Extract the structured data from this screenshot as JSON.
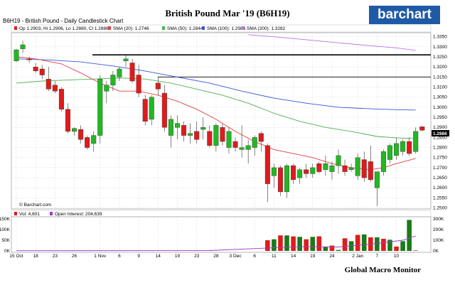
{
  "header": {
    "chart_label": "B6H19 - British Pound - Daily Candlestick Chart",
    "title": "British Pound Mar '19 (B6H19)",
    "brand": "barchart",
    "credit": "Global Macro Monitor",
    "watermark": "© Barchart.com"
  },
  "legend": {
    "ohlc": "Op 1.2903, Hi 1.2906, Lo 1.2880, Cl 1.2886",
    "sma20": "SMA (20): 1.2746",
    "sma50": "SMA (50): 1.2844",
    "sma100": "SMA (100): 1.2986",
    "sma200": "SMA (200): 1.3282",
    "vol": "Vol: 4,601",
    "oi": "Open Interest: 204,639",
    "last_price": "1.2886"
  },
  "colors": {
    "up": "#22b822",
    "down": "#e01b1b",
    "sma20": "#e04040",
    "sma50": "#4caf50",
    "sma100": "#3a55d8",
    "sma200": "#c070e0",
    "oi_line": "#9c3cc8",
    "brand_bg": "#1f5aa6",
    "vol_up": "#1b7a1b",
    "vol_down": "#e01b1b"
  },
  "chart_data": {
    "type": "candlestick",
    "y_ticks": [
      "1.3350",
      "1.3300",
      "1.3250",
      "1.3200",
      "1.3150",
      "1.3100",
      "1.3050",
      "1.3000",
      "1.2950",
      "1.2900",
      "1.2850",
      "1.2800",
      "1.2750",
      "1.2700",
      "1.2650",
      "1.2600",
      "1.2550",
      "1.2500"
    ],
    "ylim": [
      1.2495,
      1.337
    ],
    "x_ticks": [
      {
        "i": 0,
        "label": "15 Oct"
      },
      {
        "i": 3,
        "label": "18"
      },
      {
        "i": 6,
        "label": "23"
      },
      {
        "i": 9,
        "label": "26"
      },
      {
        "i": 13,
        "label": "1 Nov"
      },
      {
        "i": 16,
        "label": "6"
      },
      {
        "i": 19,
        "label": "9"
      },
      {
        "i": 22,
        "label": "14"
      },
      {
        "i": 25,
        "label": "19"
      },
      {
        "i": 28,
        "label": "23"
      },
      {
        "i": 31,
        "label": "28"
      },
      {
        "i": 34,
        "label": "3 Dec"
      },
      {
        "i": 37,
        "label": "6"
      },
      {
        "i": 40,
        "label": "11"
      },
      {
        "i": 43,
        "label": "14"
      },
      {
        "i": 46,
        "label": "19"
      },
      {
        "i": 49,
        "label": "24"
      },
      {
        "i": 53,
        "label": "2 Jan"
      },
      {
        "i": 56,
        "label": "7"
      },
      {
        "i": 59,
        "label": "10"
      }
    ],
    "h_lines": [
      1.326,
      1.315
    ],
    "candles": [
      [
        1.323,
        1.329,
        1.3225,
        1.3285
      ],
      [
        1.329,
        1.333,
        1.327,
        1.331
      ],
      [
        1.324,
        1.325,
        1.322,
        1.3235
      ],
      [
        1.32,
        1.322,
        1.317,
        1.318
      ],
      [
        1.319,
        1.321,
        1.314,
        1.316
      ],
      [
        1.314,
        1.32,
        1.308,
        1.309
      ],
      [
        1.311,
        1.313,
        1.307,
        1.308
      ],
      [
        1.309,
        1.31,
        1.298,
        1.299
      ],
      [
        1.299,
        1.302,
        1.287,
        1.288
      ],
      [
        1.288,
        1.29,
        1.286,
        1.2895
      ],
      [
        1.289,
        1.291,
        1.282,
        1.284
      ],
      [
        1.285,
        1.286,
        1.279,
        1.28
      ],
      [
        1.282,
        1.288,
        1.278,
        1.286
      ],
      [
        1.286,
        1.316,
        1.282,
        1.314
      ],
      [
        1.308,
        1.313,
        1.302,
        1.311
      ],
      [
        1.311,
        1.318,
        1.308,
        1.316
      ],
      [
        1.315,
        1.32,
        1.313,
        1.319
      ],
      [
        1.323,
        1.326,
        1.32,
        1.324
      ],
      [
        1.322,
        1.324,
        1.312,
        1.313
      ],
      [
        1.316,
        1.321,
        1.305,
        1.307
      ],
      [
        1.304,
        1.306,
        1.291,
        1.293
      ],
      [
        1.294,
        1.306,
        1.291,
        1.305
      ],
      [
        1.312,
        1.315,
        1.306,
        1.309
      ],
      [
        1.307,
        1.311,
        1.288,
        1.29
      ],
      [
        1.286,
        1.296,
        1.28,
        1.294
      ],
      [
        1.29,
        1.296,
        1.284,
        1.292
      ],
      [
        1.291,
        1.293,
        1.283,
        1.286
      ],
      [
        1.286,
        1.292,
        1.282,
        1.287
      ],
      [
        1.288,
        1.293,
        1.282,
        1.284
      ],
      [
        1.289,
        1.295,
        1.284,
        1.29
      ],
      [
        1.288,
        1.291,
        1.28,
        1.281
      ],
      [
        1.281,
        1.292,
        1.278,
        1.291
      ],
      [
        1.29,
        1.292,
        1.281,
        1.283
      ],
      [
        1.28,
        1.29,
        1.277,
        1.288
      ],
      [
        1.283,
        1.285,
        1.278,
        1.28
      ],
      [
        1.279,
        1.291,
        1.275,
        1.28
      ],
      [
        1.279,
        1.284,
        1.272,
        1.281
      ],
      [
        1.28,
        1.286,
        1.276,
        1.285
      ],
      [
        1.287,
        1.288,
        1.278,
        1.283
      ],
      [
        1.281,
        1.282,
        1.253,
        1.262
      ],
      [
        1.266,
        1.272,
        1.26,
        1.27
      ],
      [
        1.27,
        1.271,
        1.256,
        1.258
      ],
      [
        1.258,
        1.272,
        1.255,
        1.271
      ],
      [
        1.271,
        1.272,
        1.262,
        1.264
      ],
      [
        1.265,
        1.27,
        1.262,
        1.269
      ],
      [
        1.269,
        1.272,
        1.265,
        1.267
      ],
      [
        1.267,
        1.272,
        1.265,
        1.27
      ],
      [
        1.272,
        1.273,
        1.267,
        1.268
      ],
      [
        1.269,
        1.276,
        1.266,
        1.272
      ],
      [
        1.268,
        1.273,
        1.264,
        1.271
      ],
      [
        1.271,
        1.279,
        1.267,
        1.276
      ],
      [
        1.271,
        1.274,
        1.266,
        1.268
      ],
      [
        1.269,
        1.272,
        1.268,
        1.27
      ],
      [
        1.266,
        1.277,
        1.264,
        1.275
      ],
      [
        1.274,
        1.278,
        1.263,
        1.265
      ],
      [
        1.273,
        1.281,
        1.263,
        1.264
      ],
      [
        1.26,
        1.268,
        1.251,
        1.268
      ],
      [
        1.268,
        1.279,
        1.266,
        1.278
      ],
      [
        1.274,
        1.282,
        1.272,
        1.281
      ],
      [
        1.276,
        1.285,
        1.274,
        1.282
      ],
      [
        1.278,
        1.284,
        1.276,
        1.283
      ],
      [
        1.283,
        1.285,
        1.276,
        1.277
      ],
      [
        1.278,
        1.29,
        1.277,
        1.288
      ],
      [
        1.2903,
        1.2906,
        1.288,
        1.2886
      ]
    ],
    "sma20": [
      [
        0,
        1.325
      ],
      [
        3,
        1.324
      ],
      [
        7,
        1.3215
      ],
      [
        10,
        1.317
      ],
      [
        13,
        1.312
      ],
      [
        16,
        1.308
      ],
      [
        19,
        1.308
      ],
      [
        22,
        1.306
      ],
      [
        25,
        1.303
      ],
      [
        28,
        1.299
      ],
      [
        31,
        1.294
      ],
      [
        34,
        1.288
      ],
      [
        37,
        1.283
      ],
      [
        40,
        1.279
      ],
      [
        43,
        1.277
      ],
      [
        46,
        1.275
      ],
      [
        49,
        1.272
      ],
      [
        52,
        1.27
      ],
      [
        55,
        1.269
      ],
      [
        57,
        1.27
      ],
      [
        59,
        1.272
      ],
      [
        62,
        1.2746
      ]
    ],
    "sma50": [
      [
        0,
        1.312
      ],
      [
        4,
        1.313
      ],
      [
        8,
        1.3135
      ],
      [
        12,
        1.314
      ],
      [
        16,
        1.3145
      ],
      [
        20,
        1.314
      ],
      [
        24,
        1.312
      ],
      [
        28,
        1.309
      ],
      [
        32,
        1.306
      ],
      [
        36,
        1.302
      ],
      [
        40,
        1.297
      ],
      [
        44,
        1.293
      ],
      [
        48,
        1.29
      ],
      [
        52,
        1.288
      ],
      [
        56,
        1.2855
      ],
      [
        59,
        1.2848
      ],
      [
        62,
        1.2844
      ]
    ],
    "sma100": [
      [
        0,
        1.324
      ],
      [
        5,
        1.3235
      ],
      [
        10,
        1.3225
      ],
      [
        15,
        1.3205
      ],
      [
        20,
        1.318
      ],
      [
        25,
        1.315
      ],
      [
        30,
        1.312
      ],
      [
        35,
        1.308
      ],
      [
        40,
        1.3045
      ],
      [
        45,
        1.302
      ],
      [
        50,
        1.3
      ],
      [
        55,
        1.2992
      ],
      [
        59,
        1.2988
      ],
      [
        62,
        1.2986
      ]
    ],
    "sma200": [
      [
        36,
        1.336
      ],
      [
        40,
        1.335
      ],
      [
        45,
        1.3335
      ],
      [
        50,
        1.332
      ],
      [
        55,
        1.3305
      ],
      [
        59,
        1.3295
      ],
      [
        62,
        1.3282
      ]
    ],
    "vol_ticks": [
      "300K",
      "200K",
      "100K",
      "0K"
    ],
    "vol_left_ticks": [
      "150K",
      "100K",
      "50K",
      "0K"
    ],
    "volume": [
      [
        39,
        110
      ],
      [
        40,
        120
      ],
      [
        41,
        160
      ],
      [
        42,
        160
      ],
      [
        43,
        150
      ],
      [
        44,
        145
      ],
      [
        45,
        120
      ],
      [
        46,
        145
      ],
      [
        47,
        150
      ],
      [
        48,
        40
      ],
      [
        49,
        55
      ],
      [
        50,
        10
      ],
      [
        51,
        130
      ],
      [
        52,
        100
      ],
      [
        53,
        165
      ],
      [
        54,
        170
      ],
      [
        55,
        140
      ],
      [
        56,
        140
      ],
      [
        57,
        125
      ],
      [
        58,
        115
      ],
      [
        59,
        45
      ],
      [
        60,
        100
      ],
      [
        61,
        320
      ],
      [
        62,
        5
      ]
    ],
    "volume_down": [
      39,
      41,
      43,
      45,
      47,
      49,
      51,
      53,
      55,
      57,
      59,
      62
    ],
    "oi_line": [
      [
        0,
        2
      ],
      [
        30,
        4
      ],
      [
        39,
        30
      ],
      [
        45,
        45
      ],
      [
        50,
        40
      ],
      [
        55,
        70
      ],
      [
        60,
        110
      ],
      [
        62,
        155
      ]
    ]
  }
}
